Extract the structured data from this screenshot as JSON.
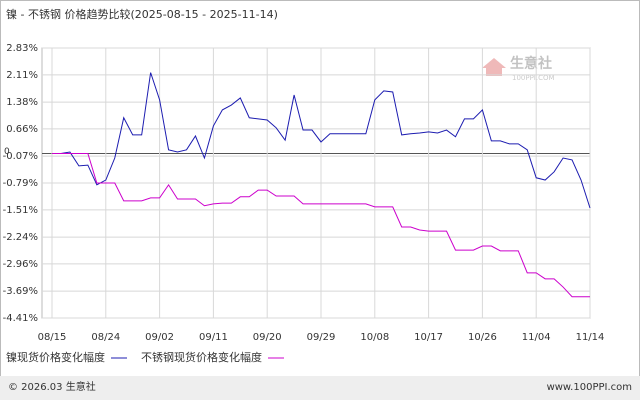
{
  "chart_data": {
    "type": "line",
    "title": "镍 - 不锈钢 价格趋势比较(2025-08-15 - 2025-11-14)",
    "categories": [
      "08/15",
      null,
      null,
      null,
      null,
      null,
      "08/24",
      null,
      null,
      null,
      null,
      null,
      "09/02",
      null,
      null,
      null,
      null,
      null,
      "09/11",
      null,
      null,
      null,
      null,
      null,
      "09/20",
      null,
      null,
      null,
      null,
      null,
      "09/29",
      null,
      null,
      null,
      null,
      null,
      "10/08",
      null,
      null,
      null,
      null,
      null,
      "10/17",
      null,
      null,
      null,
      null,
      null,
      "10/26",
      null,
      null,
      null,
      null,
      null,
      "11/04",
      null,
      null,
      null,
      null,
      null,
      "11/14"
    ],
    "series": [
      {
        "name": "镍现货价格变化幅度",
        "color": "#1c1cb0",
        "values": [
          0,
          0,
          0.04,
          -0.33,
          -0.31,
          -0.84,
          -0.71,
          -0.12,
          0.96,
          0.5,
          0.5,
          2.17,
          1.44,
          0.1,
          0.04,
          0.1,
          0.47,
          -0.12,
          0.74,
          1.17,
          1.3,
          1.49,
          0.96,
          0.93,
          0.9,
          0.69,
          0.36,
          1.57,
          0.63,
          0.63,
          0.31,
          0.53,
          0.53,
          0.53,
          0.53,
          0.53,
          1.44,
          1.68,
          1.65,
          0.5,
          0.53,
          0.55,
          0.58,
          0.55,
          0.63,
          0.45,
          0.93,
          0.93,
          1.17,
          0.34,
          0.34,
          0.26,
          0.26,
          0.1,
          -0.65,
          -0.71,
          -0.49,
          -0.12,
          -0.17,
          -0.71,
          -1.46
        ]
      },
      {
        "name": "不锈钢现货价格变化幅度",
        "color": "#cc00cc",
        "values": [
          0,
          0,
          0,
          0,
          0,
          -0.79,
          -0.79,
          -0.79,
          -1.27,
          -1.27,
          -1.27,
          -1.19,
          -1.19,
          -0.84,
          -1.22,
          -1.22,
          -1.22,
          -1.4,
          -1.35,
          -1.33,
          -1.33,
          -1.16,
          -1.16,
          -0.98,
          -0.98,
          -1.14,
          -1.14,
          -1.14,
          -1.35,
          -1.35,
          -1.35,
          -1.35,
          -1.35,
          -1.35,
          -1.35,
          -1.35,
          -1.43,
          -1.43,
          -1.43,
          -1.97,
          -1.97,
          -2.05,
          -2.08,
          -2.08,
          -2.08,
          -2.59,
          -2.59,
          -2.59,
          -2.48,
          -2.48,
          -2.61,
          -2.61,
          -2.61,
          -3.2,
          -3.2,
          -3.36,
          -3.36,
          -3.58,
          -3.84,
          -3.84,
          -3.84
        ]
      }
    ],
    "ylim": [
      -4.41,
      2.83
    ],
    "yticks": [
      {
        "value": 2.83,
        "label": "2.83%"
      },
      {
        "value": 2.11,
        "label": "2.11%"
      },
      {
        "value": 1.38,
        "label": "1.38%"
      },
      {
        "value": 0.66,
        "label": "0.66%"
      },
      {
        "value": -0.07,
        "label": "-0.07%"
      },
      {
        "value": -0.79,
        "label": "-0.79%"
      },
      {
        "value": -1.51,
        "label": "-1.51%"
      },
      {
        "value": -2.24,
        "label": "-2.24%"
      },
      {
        "value": -2.96,
        "label": "-2.96%"
      },
      {
        "value": -3.69,
        "label": "-3.69%"
      },
      {
        "value": -4.41,
        "label": "-4.41%"
      }
    ],
    "baseline": 0,
    "grid": true,
    "watermark": {
      "name": "生意社",
      "site": "100PPI.COM"
    },
    "footer": {
      "copyright": "© 2026.03 生意社",
      "url": "www.100PPI.com"
    }
  }
}
